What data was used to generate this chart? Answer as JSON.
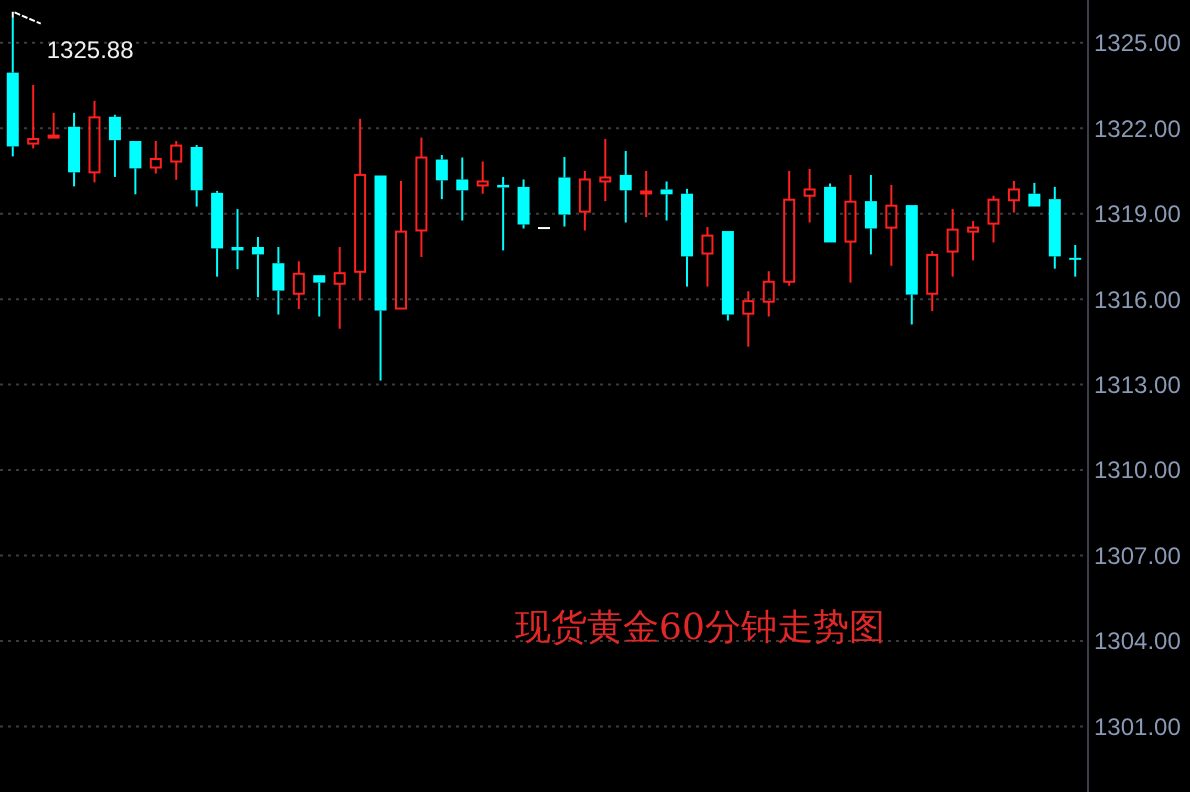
{
  "chart_data": {
    "type": "candlestick",
    "title": "现货黄金60分钟走势图",
    "categories": [
      null,
      null,
      null,
      null,
      null,
      null,
      null,
      null,
      null,
      null,
      null,
      null,
      null,
      null,
      null,
      null,
      null,
      null,
      null,
      null,
      null,
      null,
      null,
      null,
      null,
      null,
      null,
      null,
      null,
      null,
      null,
      null,
      null,
      null,
      null,
      null,
      null,
      null,
      null,
      null,
      null,
      null,
      null,
      null,
      null,
      null,
      null,
      null,
      null,
      null,
      null,
      null,
      null
    ],
    "ohlc": [
      [
        1323.95,
        1325.88,
        1321.01,
        1321.36
      ],
      [
        1321.46,
        1323.52,
        1321.29,
        1321.62
      ],
      [
        1321.72,
        1322.54,
        1321.72,
        1321.74
      ],
      [
        1322.05,
        1322.54,
        1319.96,
        1320.45
      ],
      [
        1320.45,
        1322.96,
        1320.1,
        1322.38
      ],
      [
        1322.4,
        1322.47,
        1320.29,
        1321.58
      ],
      [
        1321.55,
        1321.55,
        1319.68,
        1320.59
      ],
      [
        1320.62,
        1321.55,
        1320.41,
        1320.92
      ],
      [
        1320.83,
        1321.55,
        1320.19,
        1321.39
      ],
      [
        1321.34,
        1321.41,
        1319.25,
        1319.82
      ],
      [
        1319.73,
        1319.8,
        1316.79,
        1317.78
      ],
      [
        1317.83,
        1319.16,
        1317.05,
        1317.71
      ],
      [
        1317.83,
        1318.18,
        1316.07,
        1317.57
      ],
      [
        1317.26,
        1317.83,
        1315.46,
        1316.3
      ],
      [
        1316.19,
        1317.33,
        1315.65,
        1316.89
      ],
      [
        1316.84,
        1316.84,
        1315.39,
        1316.58
      ],
      [
        1316.54,
        1317.83,
        1314.96,
        1316.91
      ],
      [
        1316.96,
        1322.33,
        1315.95,
        1320.36
      ],
      [
        1320.34,
        1320.34,
        1313.14,
        1315.6
      ],
      [
        1315.67,
        1320.15,
        1315.67,
        1318.37
      ],
      [
        1318.41,
        1321.67,
        1317.48,
        1320.97
      ],
      [
        1320.9,
        1321.06,
        1319.51,
        1320.17
      ],
      [
        1320.2,
        1320.97,
        1318.76,
        1319.82
      ],
      [
        1319.99,
        1320.83,
        1319.7,
        1320.13
      ],
      [
        1320.01,
        1320.29,
        1317.71,
        1319.92
      ],
      [
        1319.94,
        1320.2,
        1318.48,
        1318.62
      ],
      [
        1318.53,
        1318.53,
        1318.53,
        1318.53
      ],
      [
        1320.27,
        1320.99,
        1318.55,
        1318.97
      ],
      [
        1319.07,
        1320.5,
        1318.41,
        1320.2
      ],
      [
        1320.13,
        1321.62,
        1319.44,
        1320.27
      ],
      [
        1320.36,
        1321.2,
        1318.69,
        1319.82
      ],
      [
        1319.76,
        1320.5,
        1318.88,
        1319.78
      ],
      [
        1319.85,
        1320.13,
        1318.76,
        1319.68
      ],
      [
        1319.7,
        1319.87,
        1316.44,
        1317.5
      ],
      [
        1317.6,
        1318.53,
        1316.44,
        1318.23
      ],
      [
        1318.39,
        1318.39,
        1315.25,
        1315.46
      ],
      [
        1315.49,
        1316.28,
        1314.33,
        1315.93
      ],
      [
        1315.91,
        1316.98,
        1315.39,
        1316.61
      ],
      [
        1316.61,
        1320.5,
        1316.47,
        1319.49
      ],
      [
        1319.63,
        1320.57,
        1318.69,
        1319.85
      ],
      [
        1319.94,
        1320.06,
        1317.99,
        1317.99
      ],
      [
        1318.02,
        1320.36,
        1316.58,
        1319.42
      ],
      [
        1319.44,
        1320.36,
        1317.57,
        1318.48
      ],
      [
        1318.51,
        1320.01,
        1317.17,
        1319.28
      ],
      [
        1319.3,
        1319.3,
        1315.11,
        1316.16
      ],
      [
        1316.19,
        1317.69,
        1315.58,
        1317.55
      ],
      [
        1317.67,
        1319.16,
        1316.79,
        1318.44
      ],
      [
        1318.37,
        1318.74,
        1317.36,
        1318.51
      ],
      [
        1318.65,
        1319.63,
        1317.99,
        1319.49
      ],
      [
        1319.47,
        1320.15,
        1319.04,
        1319.85
      ],
      [
        1319.7,
        1320.08,
        1319.25,
        1319.25
      ],
      [
        1319.51,
        1319.94,
        1317.07,
        1317.5
      ],
      [
        1317.45,
        1317.9,
        1316.79,
        1317.43
      ]
    ],
    "colors": [
      "#00ffff",
      "#ff2020",
      "#ff2020",
      "#00ffff",
      "#ff2020",
      "#00ffff",
      "#00ffff",
      "#ff2020",
      "#ff2020",
      "#00ffff",
      "#00ffff",
      "#00ffff",
      "#00ffff",
      "#00ffff",
      "#ff2020",
      "#00ffff",
      "#ff2020",
      "#ff2020",
      "#00ffff",
      "#ff2020",
      "#ff2020",
      "#00ffff",
      "#00ffff",
      "#ff2020",
      "#00ffff",
      "#00ffff",
      "#ffffff",
      "#00ffff",
      "#ff2020",
      "#ff2020",
      "#00ffff",
      "#ff2020",
      "#00ffff",
      "#00ffff",
      "#ff2020",
      "#00ffff",
      "#ff2020",
      "#ff2020",
      "#ff2020",
      "#ff2020",
      "#00ffff",
      "#ff2020",
      "#00ffff",
      "#ff2020",
      "#00ffff",
      "#ff2020",
      "#ff2020",
      "#ff2020",
      "#ff2020",
      "#ff2020",
      "#00ffff",
      "#00ffff",
      "#00ffff"
    ],
    "ylim": [
      1298.7,
      1326.5
    ],
    "yticks": [
      {
        "value": 1301,
        "label": "1301.00"
      },
      {
        "value": 1304,
        "label": "1304.00"
      },
      {
        "value": 1307,
        "label": "1307.00"
      },
      {
        "value": 1310,
        "label": "1310.00"
      },
      {
        "value": 1313,
        "label": "1313.00"
      },
      {
        "value": 1316,
        "label": "1316.00"
      },
      {
        "value": 1319,
        "label": "1319.00"
      },
      {
        "value": 1322,
        "label": "1322.00"
      },
      {
        "value": 1325,
        "label": "1325.00"
      }
    ],
    "grid": "y",
    "annotations": [
      "1325.88"
    ]
  }
}
